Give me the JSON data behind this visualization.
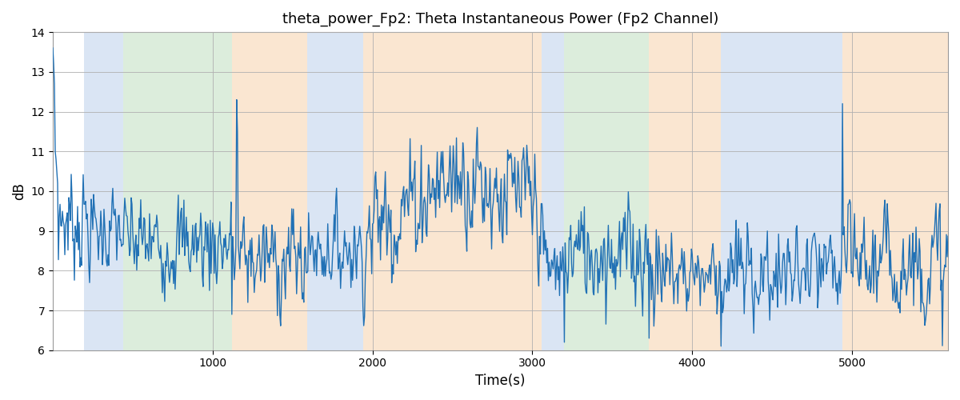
{
  "title": "theta_power_Fp2: Theta Instantaneous Power (Fp2 Channel)",
  "xlabel": "Time(s)",
  "ylabel": "dB",
  "ylim": [
    6,
    14
  ],
  "xlim": [
    0,
    5600
  ],
  "yticks": [
    6,
    7,
    8,
    9,
    10,
    11,
    12,
    13,
    14
  ],
  "xticks": [
    1000,
    2000,
    3000,
    4000,
    5000
  ],
  "line_color": "#2171b5",
  "line_width": 1.0,
  "figsize": [
    12,
    5
  ],
  "dpi": 100,
  "background_color": "#ffffff",
  "grid_color": "#b0b0b0",
  "regions": [
    {
      "start": 195,
      "end": 440,
      "color": "#aec6e8",
      "alpha": 0.45
    },
    {
      "start": 440,
      "end": 1120,
      "color": "#b2d8b2",
      "alpha": 0.45
    },
    {
      "start": 1120,
      "end": 1590,
      "color": "#f5c89a",
      "alpha": 0.45
    },
    {
      "start": 1590,
      "end": 1940,
      "color": "#aec6e8",
      "alpha": 0.45
    },
    {
      "start": 1940,
      "end": 3060,
      "color": "#f5c89a",
      "alpha": 0.45
    },
    {
      "start": 3060,
      "end": 3200,
      "color": "#aec6e8",
      "alpha": 0.45
    },
    {
      "start": 3200,
      "end": 3730,
      "color": "#b2d8b2",
      "alpha": 0.45
    },
    {
      "start": 3730,
      "end": 4180,
      "color": "#f5c89a",
      "alpha": 0.45
    },
    {
      "start": 4180,
      "end": 4940,
      "color": "#aec6e8",
      "alpha": 0.45
    },
    {
      "start": 4940,
      "end": 5600,
      "color": "#f5c89a",
      "alpha": 0.45
    }
  ]
}
